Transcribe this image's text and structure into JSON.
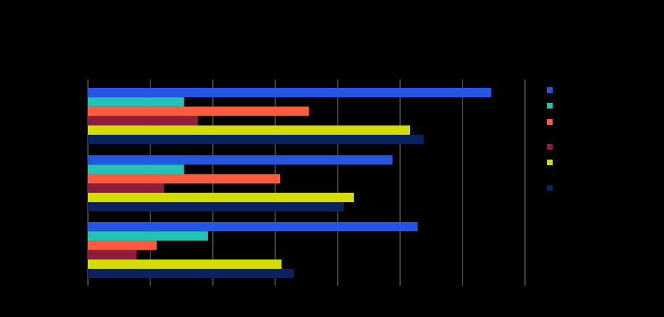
{
  "chart_data": {
    "type": "bar",
    "orientation": "horizontal",
    "categories": [
      "",
      "",
      ""
    ],
    "series": [
      {
        "color": "#2555e4",
        "values": [
          32.3,
          24.4,
          26.4
        ]
      },
      {
        "color": "#22c3b6",
        "values": [
          7.7,
          7.7,
          9.6
        ]
      },
      {
        "color": "#ff5c3f",
        "values": [
          17.7,
          15.4,
          5.5
        ]
      },
      {
        "color": "#8e1d3d",
        "values": [
          8.8,
          6.1,
          3.9
        ]
      },
      {
        "color": "#d4dc05",
        "values": [
          25.8,
          21.3,
          15.5
        ]
      },
      {
        "color": "#0b2260",
        "values": [
          26.9,
          20.5,
          16.5
        ]
      }
    ],
    "xlim": [
      0,
      35
    ],
    "grid": true,
    "legend_position": "right",
    "background": "#000000",
    "gridline_color": "#7f7f7f"
  }
}
